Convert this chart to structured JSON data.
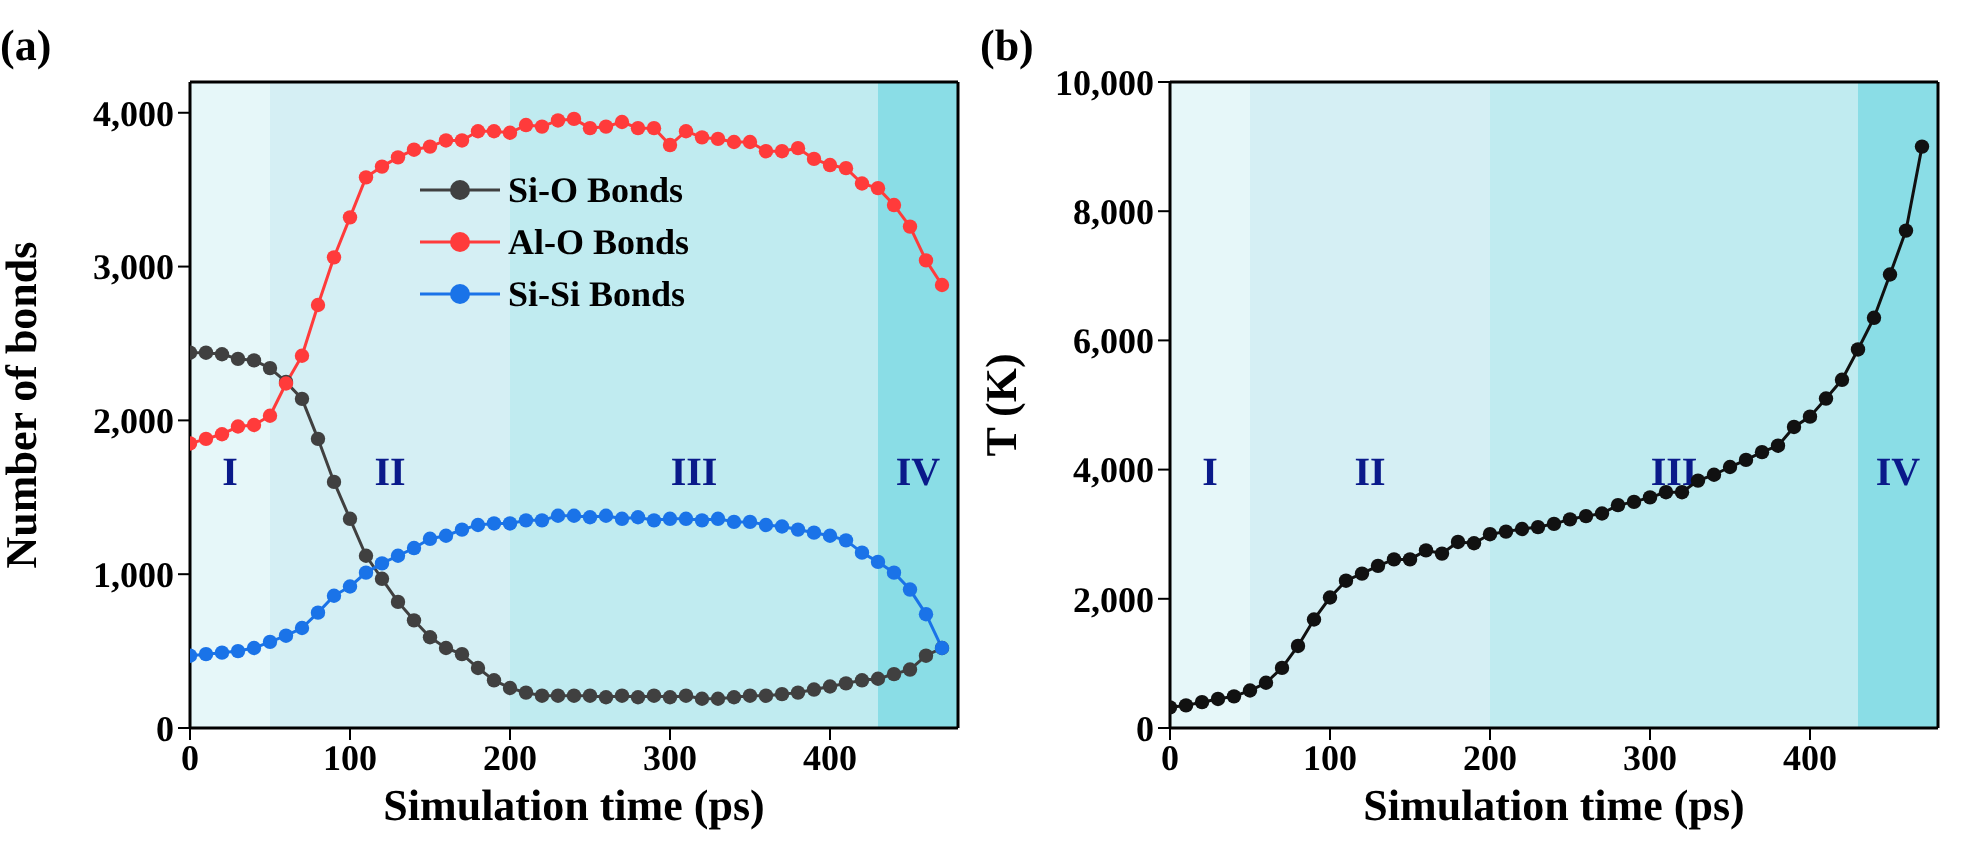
{
  "chart_data": [
    {
      "type": "line",
      "title": "(a)",
      "xlabel": "Simulation time (ps)",
      "ylabel": "Number of bonds",
      "x": [
        0,
        10,
        20,
        30,
        40,
        50,
        60,
        70,
        80,
        90,
        100,
        110,
        120,
        130,
        140,
        150,
        160,
        170,
        180,
        190,
        200,
        210,
        220,
        230,
        240,
        250,
        260,
        270,
        280,
        290,
        300,
        310,
        320,
        330,
        340,
        350,
        360,
        370,
        380,
        390,
        400,
        410,
        420,
        430,
        440,
        450,
        460,
        470
      ],
      "series": [
        {
          "name": "Si-O Bonds",
          "color": "#404040",
          "values": [
            2440,
            2440,
            2430,
            2400,
            2390,
            2340,
            2250,
            2140,
            1880,
            1600,
            1360,
            1120,
            970,
            820,
            700,
            590,
            520,
            480,
            390,
            310,
            260,
            230,
            210,
            210,
            210,
            210,
            200,
            210,
            200,
            210,
            200,
            210,
            190,
            190,
            200,
            210,
            210,
            220,
            230,
            250,
            270,
            290,
            310,
            320,
            350,
            380,
            470,
            520
          ]
        },
        {
          "name": "Al-O Bonds",
          "color": "#ff3b3b",
          "values": [
            1850,
            1880,
            1910,
            1960,
            1970,
            2030,
            2240,
            2420,
            2750,
            3060,
            3320,
            3580,
            3650,
            3710,
            3760,
            3780,
            3820,
            3820,
            3880,
            3880,
            3870,
            3920,
            3910,
            3950,
            3960,
            3900,
            3910,
            3940,
            3900,
            3900,
            3790,
            3880,
            3840,
            3830,
            3810,
            3810,
            3750,
            3750,
            3770,
            3700,
            3660,
            3640,
            3540,
            3510,
            3400,
            3260,
            3040,
            2880
          ]
        },
        {
          "name": "Si-Si Bonds",
          "color": "#1a73e8",
          "values": [
            470,
            480,
            490,
            500,
            520,
            560,
            600,
            650,
            750,
            860,
            920,
            1010,
            1070,
            1120,
            1170,
            1230,
            1250,
            1290,
            1320,
            1330,
            1330,
            1350,
            1350,
            1380,
            1380,
            1370,
            1380,
            1360,
            1370,
            1350,
            1360,
            1360,
            1350,
            1360,
            1340,
            1340,
            1320,
            1310,
            1290,
            1270,
            1250,
            1220,
            1140,
            1080,
            1010,
            900,
            740,
            520
          ]
        }
      ],
      "xlim": [
        0,
        480
      ],
      "xticks": [
        0,
        100,
        200,
        300,
        400
      ],
      "ylim": [
        0,
        4200
      ],
      "yticks": [
        0,
        {
          "value": 1000,
          "label": "1,000"
        },
        {
          "value": 2000,
          "label": "2,000"
        },
        {
          "value": 3000,
          "label": "3,000"
        },
        {
          "value": 4000,
          "label": "4,000"
        }
      ],
      "bands": [
        {
          "axis": "x",
          "from": 0,
          "to": 50,
          "label": "I",
          "color": "#e6f7f9"
        },
        {
          "axis": "x",
          "from": 50,
          "to": 200,
          "label": "II",
          "color": "#d5eff4"
        },
        {
          "axis": "x",
          "from": 200,
          "to": 430,
          "label": "III",
          "color": "#c0ebf0"
        },
        {
          "axis": "x",
          "from": 430,
          "to": 480,
          "label": "IV",
          "color": "#8adde6"
        }
      ],
      "legend": "top",
      "marker": "circle"
    },
    {
      "type": "line",
      "title": "(b)",
      "xlabel": "Simulation time (ps)",
      "ylabel": "T (K)",
      "x": [
        0,
        10,
        20,
        30,
        40,
        50,
        60,
        70,
        80,
        90,
        100,
        110,
        120,
        130,
        140,
        150,
        160,
        170,
        180,
        190,
        200,
        210,
        220,
        230,
        240,
        250,
        260,
        270,
        280,
        290,
        300,
        310,
        320,
        330,
        340,
        350,
        360,
        370,
        380,
        390,
        400,
        410,
        420,
        430,
        440,
        450,
        460,
        470
      ],
      "series": [
        {
          "color": "#111111",
          "values": [
            320,
            350,
            400,
            450,
            490,
            580,
            700,
            930,
            1270,
            1680,
            2020,
            2280,
            2390,
            2510,
            2610,
            2610,
            2750,
            2700,
            2880,
            2860,
            3000,
            3040,
            3080,
            3110,
            3160,
            3230,
            3280,
            3320,
            3450,
            3500,
            3570,
            3650,
            3650,
            3830,
            3920,
            4040,
            4150,
            4270,
            4370,
            4660,
            4820,
            5100,
            5390,
            5860,
            6350,
            7020,
            7700,
            9000
          ]
        }
      ],
      "xlim": [
        0,
        480
      ],
      "xticks": [
        0,
        100,
        200,
        300,
        400
      ],
      "ylim": [
        0,
        10000
      ],
      "yticks": [
        0,
        {
          "value": 2000,
          "label": "2,000"
        },
        {
          "value": 4000,
          "label": "4,000"
        },
        {
          "value": 6000,
          "label": "6,000"
        },
        {
          "value": 8000,
          "label": "8,000"
        },
        {
          "value": 10000,
          "label": "10,000"
        }
      ],
      "bands": [
        {
          "axis": "x",
          "from": 0,
          "to": 50,
          "label": "I",
          "color": "#e6f7f9"
        },
        {
          "axis": "x",
          "from": 50,
          "to": 200,
          "label": "II",
          "color": "#d5eff4"
        },
        {
          "axis": "x",
          "from": 200,
          "to": 430,
          "label": "III",
          "color": "#c0ebf0"
        },
        {
          "axis": "x",
          "from": 430,
          "to": 480,
          "label": "IV",
          "color": "#8adde6"
        }
      ],
      "legend": false,
      "marker": "circle"
    }
  ]
}
